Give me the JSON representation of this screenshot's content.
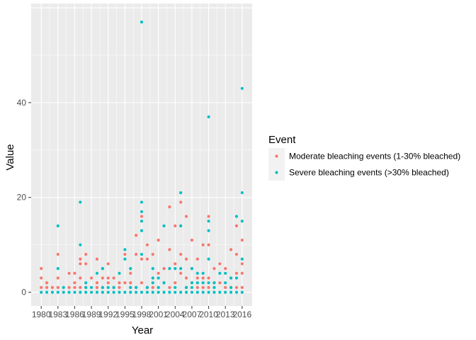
{
  "chart_data": {
    "type": "scatter",
    "xlabel": "Year",
    "ylabel": "Value",
    "xlim": [
      1978.2,
      2017.8
    ],
    "ylim": [
      -2.9,
      60.9
    ],
    "xticks": [
      1980,
      1983,
      1986,
      1989,
      1992,
      1995,
      1998,
      2001,
      2004,
      2007,
      2010,
      2013,
      2016
    ],
    "yticks": [
      0,
      20,
      40
    ],
    "grid": true,
    "legend": {
      "title": "Event",
      "position": "right"
    },
    "series": [
      {
        "name": "Moderate bleaching events (1-30% bleached)",
        "color": "#F8766D",
        "points": [
          [
            1980,
            5
          ],
          [
            1980,
            3
          ],
          [
            1980,
            1
          ],
          [
            1981,
            1
          ],
          [
            1981,
            2
          ],
          [
            1982,
            1
          ],
          [
            1983,
            8
          ],
          [
            1983,
            3
          ],
          [
            1983,
            1
          ],
          [
            1985,
            1
          ],
          [
            1985,
            4
          ],
          [
            1986,
            1
          ],
          [
            1986,
            4
          ],
          [
            1986,
            2
          ],
          [
            1987,
            7
          ],
          [
            1987,
            6
          ],
          [
            1987,
            3
          ],
          [
            1987,
            1
          ],
          [
            1988,
            8
          ],
          [
            1988,
            6
          ],
          [
            1988,
            1
          ],
          [
            1989,
            3
          ],
          [
            1990,
            7
          ],
          [
            1990,
            2
          ],
          [
            1990,
            1
          ],
          [
            1991,
            5
          ],
          [
            1991,
            3
          ],
          [
            1991,
            1
          ],
          [
            1992,
            6
          ],
          [
            1992,
            3
          ],
          [
            1992,
            2
          ],
          [
            1993,
            3
          ],
          [
            1993,
            1
          ],
          [
            1994,
            2
          ],
          [
            1994,
            1
          ],
          [
            1995,
            8
          ],
          [
            1995,
            2
          ],
          [
            1996,
            4
          ],
          [
            1996,
            2
          ],
          [
            1996,
            1
          ],
          [
            1997,
            12
          ],
          [
            1997,
            8
          ],
          [
            1997,
            1
          ],
          [
            1998,
            16
          ],
          [
            1998,
            7
          ],
          [
            1998,
            2
          ],
          [
            1999,
            10
          ],
          [
            1999,
            7
          ],
          [
            1999,
            1
          ],
          [
            2000,
            8
          ],
          [
            2000,
            1
          ],
          [
            2001,
            11
          ],
          [
            2001,
            4
          ],
          [
            2001,
            1
          ],
          [
            2002,
            5
          ],
          [
            2002,
            2
          ],
          [
            2003,
            18
          ],
          [
            2003,
            9
          ],
          [
            2003,
            1
          ],
          [
            2004,
            14
          ],
          [
            2004,
            6
          ],
          [
            2004,
            2
          ],
          [
            2005,
            19
          ],
          [
            2005,
            8
          ],
          [
            2005,
            4
          ],
          [
            2006,
            16
          ],
          [
            2006,
            7
          ],
          [
            2006,
            3
          ],
          [
            2006,
            1
          ],
          [
            2007,
            11
          ],
          [
            2007,
            5
          ],
          [
            2007,
            2
          ],
          [
            2008,
            7
          ],
          [
            2008,
            3
          ],
          [
            2008,
            1
          ],
          [
            2009,
            10
          ],
          [
            2009,
            3
          ],
          [
            2009,
            1
          ],
          [
            2010,
            16
          ],
          [
            2010,
            10
          ],
          [
            2010,
            3
          ],
          [
            2010,
            1
          ],
          [
            2011,
            5
          ],
          [
            2011,
            2
          ],
          [
            2012,
            6
          ],
          [
            2012,
            2
          ],
          [
            2013,
            5
          ],
          [
            2013,
            1
          ],
          [
            2014,
            9
          ],
          [
            2014,
            3
          ],
          [
            2014,
            1
          ],
          [
            2015,
            14
          ],
          [
            2015,
            8
          ],
          [
            2015,
            4
          ],
          [
            2015,
            1
          ],
          [
            2016,
            11
          ],
          [
            2016,
            6
          ],
          [
            2016,
            4
          ],
          [
            2016,
            1
          ]
        ]
      },
      {
        "name": "Severe bleaching events (>30% bleached)",
        "color": "#00BFC4",
        "points": [
          [
            1980,
            0
          ],
          [
            1981,
            0
          ],
          [
            1982,
            0
          ],
          [
            1983,
            14
          ],
          [
            1983,
            5
          ],
          [
            1983,
            0
          ],
          [
            1984,
            1
          ],
          [
            1984,
            0
          ],
          [
            1985,
            0
          ],
          [
            1986,
            0
          ],
          [
            1987,
            19
          ],
          [
            1987,
            10
          ],
          [
            1987,
            0
          ],
          [
            1988,
            2
          ],
          [
            1988,
            1
          ],
          [
            1988,
            0
          ],
          [
            1989,
            0
          ],
          [
            1989,
            1
          ],
          [
            1990,
            4
          ],
          [
            1990,
            0
          ],
          [
            1991,
            5
          ],
          [
            1991,
            1
          ],
          [
            1991,
            0
          ],
          [
            1992,
            1
          ],
          [
            1992,
            0
          ],
          [
            1993,
            0
          ],
          [
            1993,
            1
          ],
          [
            1994,
            4
          ],
          [
            1994,
            0
          ],
          [
            1995,
            9
          ],
          [
            1995,
            7
          ],
          [
            1995,
            0
          ],
          [
            1996,
            5
          ],
          [
            1996,
            1
          ],
          [
            1996,
            0
          ],
          [
            1997,
            1
          ],
          [
            1997,
            0
          ],
          [
            1998,
            57
          ],
          [
            1998,
            19
          ],
          [
            1998,
            17
          ],
          [
            1998,
            15
          ],
          [
            1998,
            13
          ],
          [
            1998,
            8
          ],
          [
            1998,
            0
          ],
          [
            1999,
            1
          ],
          [
            1999,
            0
          ],
          [
            2000,
            5
          ],
          [
            2000,
            3
          ],
          [
            2000,
            2
          ],
          [
            2000,
            0
          ],
          [
            2001,
            3
          ],
          [
            2001,
            1
          ],
          [
            2001,
            0
          ],
          [
            2002,
            14
          ],
          [
            2002,
            2
          ],
          [
            2002,
            0
          ],
          [
            2003,
            5
          ],
          [
            2003,
            0
          ],
          [
            2004,
            5
          ],
          [
            2004,
            1
          ],
          [
            2004,
            0
          ],
          [
            2005,
            21
          ],
          [
            2005,
            14
          ],
          [
            2005,
            5
          ],
          [
            2005,
            0
          ],
          [
            2006,
            1
          ],
          [
            2006,
            0
          ],
          [
            2007,
            5
          ],
          [
            2007,
            2
          ],
          [
            2007,
            1
          ],
          [
            2007,
            0
          ],
          [
            2008,
            4
          ],
          [
            2008,
            2
          ],
          [
            2008,
            0
          ],
          [
            2009,
            4
          ],
          [
            2009,
            2
          ],
          [
            2009,
            0
          ],
          [
            2010,
            37
          ],
          [
            2010,
            15
          ],
          [
            2010,
            13
          ],
          [
            2010,
            7
          ],
          [
            2010,
            2
          ],
          [
            2010,
            0
          ],
          [
            2011,
            2
          ],
          [
            2011,
            1
          ],
          [
            2011,
            0
          ],
          [
            2012,
            4
          ],
          [
            2012,
            0
          ],
          [
            2013,
            4
          ],
          [
            2013,
            2
          ],
          [
            2013,
            0
          ],
          [
            2014,
            3
          ],
          [
            2014,
            1
          ],
          [
            2014,
            0
          ],
          [
            2015,
            16
          ],
          [
            2015,
            3
          ],
          [
            2015,
            0
          ],
          [
            2016,
            43
          ],
          [
            2016,
            21
          ],
          [
            2016,
            15
          ],
          [
            2016,
            7
          ],
          [
            2016,
            0
          ]
        ]
      }
    ]
  }
}
